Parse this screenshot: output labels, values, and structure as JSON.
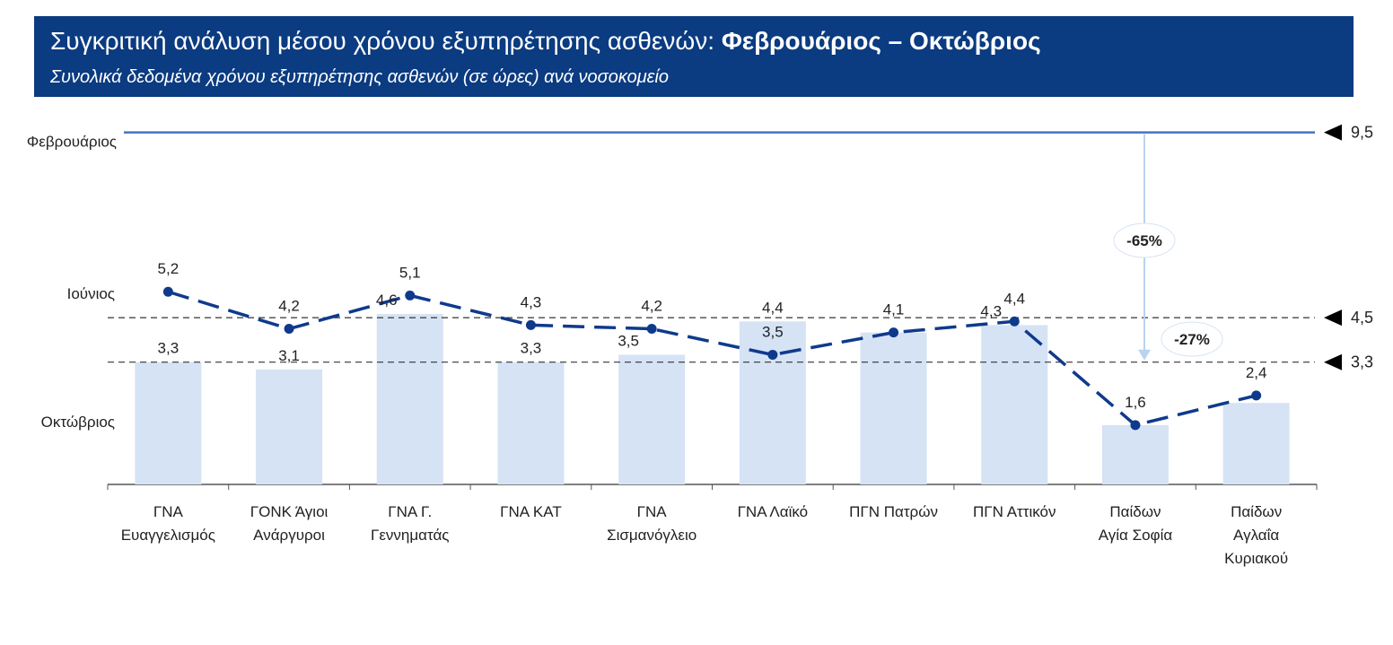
{
  "chart_data": {
    "type": "bar_line",
    "title": "Συγκριτική ανάλυση μέσου χρόνου εξυπηρέτησης ασθενών:",
    "title_highlight": "Φεβρουάριος – Οκτώβριος",
    "subtitle": "Συνολικά δεδομένα χρόνου εξυπηρέτησης ασθενών (σε ώρες) ανά νοσοκομείο",
    "categories": [
      [
        "ΓΝΑ",
        "Ευαγγελισμός"
      ],
      [
        "ΓΟΝΚ Άγιοι",
        "Ανάργυροι"
      ],
      [
        "ΓΝΑ Γ.",
        "Γεννηματάς"
      ],
      [
        "ΓΝΑ ΚΑΤ"
      ],
      [
        "ΓΝΑ",
        "Σισμανόγλειο"
      ],
      [
        "ΓΝΑ Λαϊκό"
      ],
      [
        "ΠΓΝ Πατρών"
      ],
      [
        "ΠΓΝ Αττικόν"
      ],
      [
        "Παίδων",
        "Αγία Σοφία"
      ],
      [
        "Παίδων",
        "Αγλαΐα",
        "Κυριακού"
      ]
    ],
    "series": [
      {
        "name": "Οκτώβριος",
        "kind": "bar",
        "color": "#d5e3f5",
        "values": [
          3.3,
          3.1,
          4.6,
          3.3,
          3.5,
          4.4,
          4.1,
          4.3,
          1.6,
          2.2
        ],
        "value_labels": [
          "3,3",
          "3,1",
          "4,6",
          "3,3",
          "3,5",
          "4,4",
          null,
          "4,3",
          null,
          null
        ]
      },
      {
        "name": "Ιούνιος",
        "kind": "line",
        "color": "#0f3a8c",
        "values": [
          5.2,
          4.2,
          5.1,
          4.3,
          4.2,
          3.5,
          4.1,
          4.4,
          1.6,
          2.4
        ],
        "value_labels": [
          "5,2",
          "4,2",
          "5,1",
          "4,3",
          "4,2",
          "3,5",
          "4,1",
          "4,4",
          "1,6",
          "2,4"
        ]
      }
    ],
    "reference_lines": [
      {
        "name": "Φεβρουάριος",
        "value": 9.5,
        "label": "9,5",
        "color": "#4472c4",
        "style": "solid"
      },
      {
        "value": 4.5,
        "label": "4,5",
        "color": "#333333",
        "style": "dashed"
      },
      {
        "value": 3.3,
        "label": "3,3",
        "color": "#333333",
        "style": "dashed"
      }
    ],
    "annotations": [
      "-65%",
      "-27%"
    ],
    "ylim": [
      0,
      10
    ]
  }
}
